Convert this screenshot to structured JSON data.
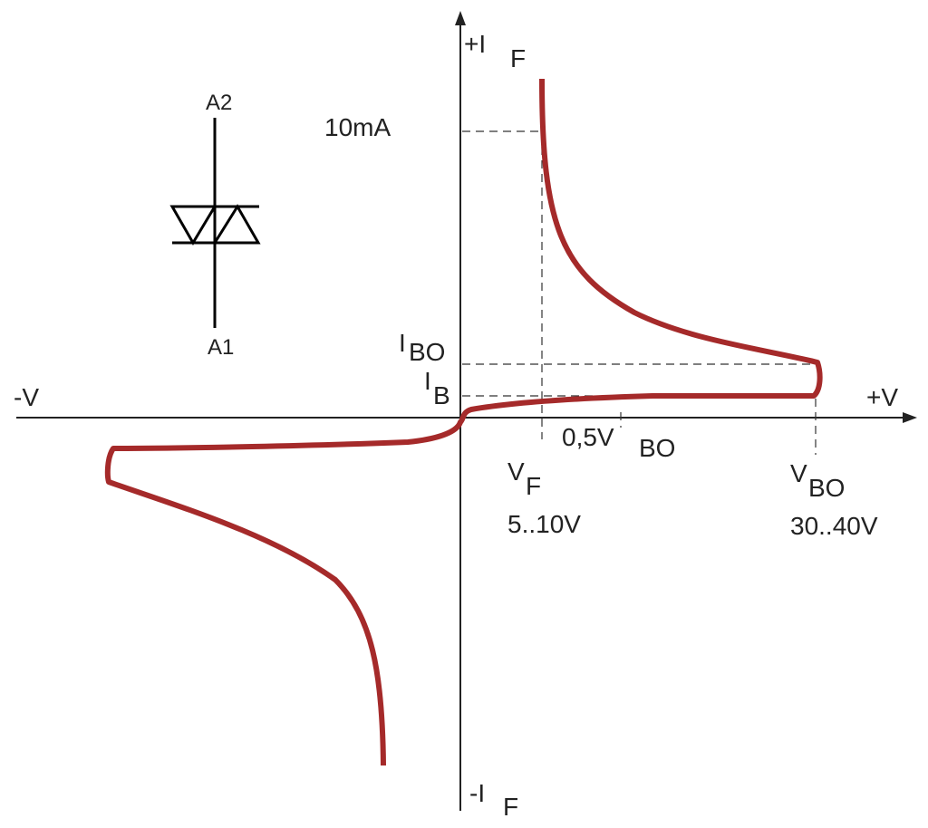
{
  "axes": {
    "y_positive": {
      "main": "+I",
      "sub": "F"
    },
    "y_negative": {
      "main": "-I",
      "sub": "F"
    },
    "x_negative": "-V",
    "x_positive": "+V"
  },
  "annotations": {
    "current_marker": "10mA",
    "i_bo": {
      "main": "I",
      "sub": "BO"
    },
    "i_b": {
      "main": "I",
      "sub": "B"
    },
    "half_v_bo": {
      "main": "0,5V",
      "sub": "BO"
    },
    "v_f": {
      "main": "V",
      "sub": "F",
      "range": "5..10V"
    },
    "v_bo": {
      "main": "V",
      "sub": "BO",
      "range": "30..40V"
    }
  },
  "symbol": {
    "top_terminal": "A2",
    "bottom_terminal": "A1"
  }
}
